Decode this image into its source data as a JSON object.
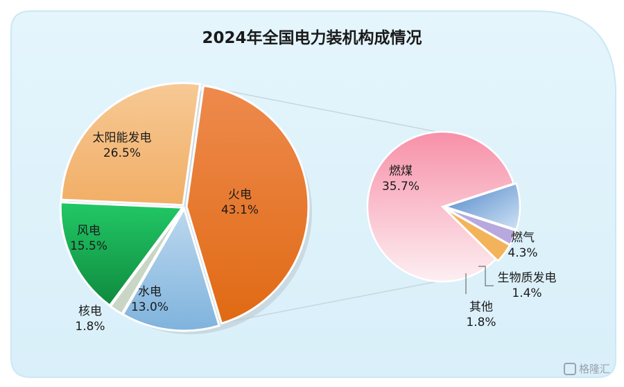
{
  "chart_data": {
    "type": "pie",
    "title": "2024年全国电力装机构成情况",
    "main_pie": {
      "slices": [
        {
          "name": "火电",
          "value": 43.1,
          "label": "43.1%",
          "color": "#e97a2e"
        },
        {
          "name": "水电",
          "value": 13.0,
          "label": "13.0%",
          "color": "#8fbfe3"
        },
        {
          "name": "核电",
          "value": 1.8,
          "label": "1.8%",
          "color": "#c9d6c6"
        },
        {
          "name": "风电",
          "value": 15.5,
          "label": "15.5%",
          "color": "#1fae55"
        },
        {
          "name": "太阳能发电",
          "value": 26.5,
          "label": "26.5%",
          "color": "#f4bd7f"
        }
      ]
    },
    "breakdown_pie": {
      "of": "火电",
      "slices": [
        {
          "name": "燃煤",
          "value": 35.7,
          "label": "35.7%",
          "color": "#f59aae"
        },
        {
          "name": "燃气",
          "value": 4.3,
          "label": "4.3%",
          "color": "#6f9fd6"
        },
        {
          "name": "生物质发电",
          "value": 1.4,
          "label": "1.4%",
          "color": "#b7a9dd"
        },
        {
          "name": "其他",
          "value": 1.8,
          "label": "1.8%",
          "color": "#f3b35a"
        }
      ]
    }
  },
  "watermark": "格隆汇",
  "colors": {
    "panel_bg": "#e3f4fb",
    "panel_border": "#cdeaf6"
  }
}
